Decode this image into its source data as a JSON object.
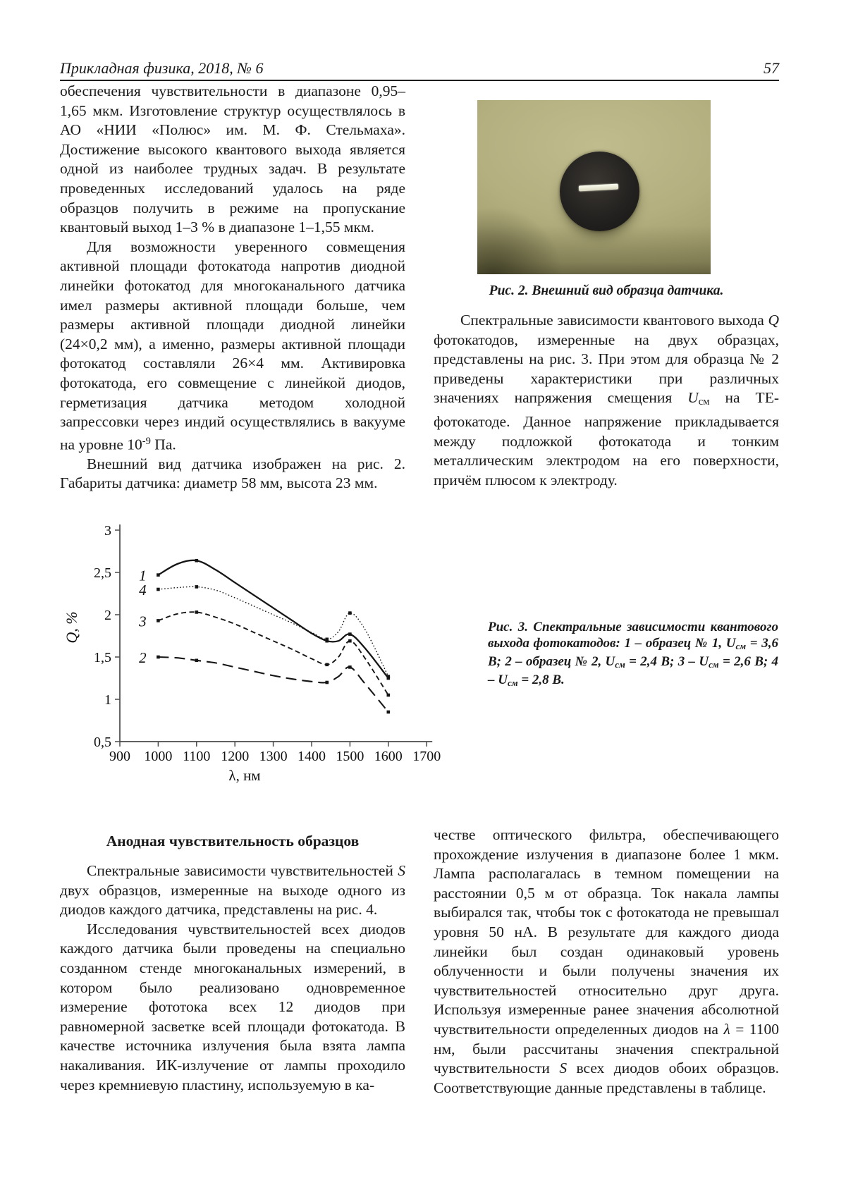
{
  "header": {
    "journal": "Прикладная физика, 2018, № 6",
    "page_number": "57"
  },
  "left_top": {
    "p1": [
      {
        "t": "обеспечения чувствительности в диапазоне 0,95–1,65 мкм. Изготовление структур осуществлялось в АО «НИИ «Полюс» им. М. Ф. Стельмаха». Достижение высокого квантового выхода является одной из наиболее трудных задач. В результате проведенных исследований удалось на ряде образцов получить в режиме на пропускание квантовый выход 1–3 % в диапазоне 1–1,55 мкм.",
        "s": ""
      }
    ],
    "p2": [
      {
        "t": "Для возможности уверенного совмещения активной площади фотокатода напротив диодной линейки фотокатод для многоканального датчика имел размеры активной площади больше, чем размеры активной площади диодной линейки (24×0,2 мм), а именно, размеры активной площади фотокатод составляли 26×4 мм. Активировка фотокатода, его совмещение с линейкой диодов, герметизация датчика методом холодной запрессовки через индий осуществлялись в вакууме на уровне 10",
        "s": ""
      },
      {
        "t": "-9",
        "s": "sup"
      },
      {
        "t": " Па.",
        "s": ""
      }
    ],
    "p3": [
      {
        "t": "Внешний вид датчика изображен на рис. 2. Габариты датчика: диаметр 58 мм, высота 23 мм.",
        "s": ""
      }
    ]
  },
  "figure2": {
    "caption": [
      {
        "t": "Рис. 2. Внешний вид образца датчика.",
        "s": ""
      }
    ]
  },
  "right_top": {
    "p1": [
      {
        "t": "Спектральные зависимости квантового выхода ",
        "s": ""
      },
      {
        "t": "Q",
        "s": "i"
      },
      {
        "t": " фотокатодов, измеренные на двух образцах, представлены на рис. 3. При этом для образца № 2 приведены характеристики при различных значениях напряжения смещения ",
        "s": ""
      },
      {
        "t": "U",
        "s": "i"
      },
      {
        "t": "см",
        "s": "sub"
      },
      {
        "t": " на ТЕ-фотокатоде. Данное напряжение прикладывается между подложкой фотокатода и тонким металлическим электродом на его поверхности, причём плюсом к электроду.",
        "s": ""
      }
    ]
  },
  "figure3": {
    "caption": [
      {
        "t": "Рис. 3. Спектральные зависимости квантового выхода фотокатодов: 1 – образец № 1, ",
        "s": ""
      },
      {
        "t": "U",
        "s": ""
      },
      {
        "t": "см",
        "s": "sub"
      },
      {
        "t": " = 3,6 В; 2 – образец № 2, ",
        "s": ""
      },
      {
        "t": "U",
        "s": ""
      },
      {
        "t": "см",
        "s": "sub"
      },
      {
        "t": " = 2,4 В; 3 – ",
        "s": ""
      },
      {
        "t": "U",
        "s": ""
      },
      {
        "t": "см",
        "s": "sub"
      },
      {
        "t": " = 2,6 В; 4 – ",
        "s": ""
      },
      {
        "t": "U",
        "s": ""
      },
      {
        "t": "см",
        "s": "sub"
      },
      {
        "t": " = 2,8 В.",
        "s": ""
      }
    ]
  },
  "section": {
    "title": "Анодная чувствительность образцов"
  },
  "left_bottom": {
    "p1": [
      {
        "t": "Спектральные зависимости чувствительностей ",
        "s": ""
      },
      {
        "t": "S",
        "s": "i"
      },
      {
        "t": " двух образцов, измеренные на выходе одного из диодов каждого датчика, представлены на рис. 4.",
        "s": ""
      }
    ],
    "p2": [
      {
        "t": "Исследования чувствительностей всех диодов каждого датчика были проведены на специально созданном стенде многоканальных измерений, в котором было реализовано одновременное измерение фототока всех 12 диодов при равномерной засветке всей площади фотокатода. В качестве источника излучения была взята лампа накаливания. ИК-излучение от лампы проходило через кремниевую пластину, используемую в ка-",
        "s": ""
      }
    ]
  },
  "right_bottom": {
    "p1": [
      {
        "t": "честве оптического фильтра, обеспечивающего прохождение излучения в диапазоне более 1 мкм. Лампа располагалась в темном помещении на расстоянии 0,5 м от образца. Ток накала лампы выбирался так, чтобы ток с фотокатода не превышал уровня 50 нА. В результате для каждого диода линейки был создан одинаковый уровень облученности и были получены значения их чувствительностей относительно друг друга. Используя измеренные ранее значения абсолютной чувствительности определенных диодов на ",
        "s": ""
      },
      {
        "t": "λ",
        "s": "i"
      },
      {
        "t": " = 1100 нм, были рассчитаны значения спектральной чувствительности ",
        "s": ""
      },
      {
        "t": "S",
        "s": "i"
      },
      {
        "t": " всех диодов обоих образцов. Соответствующие данные представлены в таблице.",
        "s": ""
      }
    ]
  },
  "chart_data": {
    "type": "line",
    "title": "",
    "xlabel": "λ, нм",
    "ylabel": "Q, %",
    "xlim": [
      900,
      1700
    ],
    "ylim": [
      0.5,
      3
    ],
    "grid": false,
    "legend_position": "curve-start-labels",
    "x_ticks": [
      900,
      1000,
      1100,
      1200,
      1300,
      1400,
      1500,
      1600,
      1700
    ],
    "x_tick_labels": [
      "900",
      "1000",
      "1100",
      "1200",
      "1300",
      "1400",
      "1500",
      "1600",
      "1700"
    ],
    "y_ticks": [
      0.5,
      1,
      1.5,
      2,
      2.5,
      3
    ],
    "y_tick_labels": [
      "0,5",
      "1",
      "1,5",
      "2",
      "2,5",
      "3"
    ],
    "x": [
      1000,
      1050,
      1100,
      1150,
      1200,
      1250,
      1300,
      1350,
      1400,
      1440,
      1470,
      1500,
      1540,
      1600
    ],
    "marker_x": [
      1000,
      1100,
      1440,
      1500,
      1600
    ],
    "series": [
      {
        "name": "1",
        "legend": "образец № 1, Uсм = 3,6 В",
        "dash": "solid",
        "y": [
          2.47,
          2.6,
          2.64,
          2.53,
          2.38,
          2.23,
          2.08,
          1.93,
          1.78,
          1.69,
          1.69,
          1.77,
          1.6,
          1.25
        ]
      },
      {
        "name": "4",
        "legend": "Uсм = 2,8 В",
        "dash": "dot",
        "y": [
          2.3,
          2.32,
          2.33,
          2.29,
          2.2,
          2.1,
          2.0,
          1.9,
          1.79,
          1.71,
          1.8,
          2.02,
          1.82,
          1.27
        ]
      },
      {
        "name": "3",
        "legend": "Uсм = 2,6 В",
        "dash": "dash",
        "y": [
          1.93,
          2.01,
          2.03,
          1.97,
          1.89,
          1.79,
          1.69,
          1.59,
          1.48,
          1.41,
          1.5,
          1.69,
          1.48,
          1.05
        ]
      },
      {
        "name": "2",
        "legend": "образец № 2, Uсм = 2,4 В",
        "dash": "longdash",
        "y": [
          1.5,
          1.49,
          1.46,
          1.43,
          1.38,
          1.33,
          1.28,
          1.24,
          1.21,
          1.2,
          1.27,
          1.38,
          1.18,
          0.85
        ]
      }
    ]
  }
}
